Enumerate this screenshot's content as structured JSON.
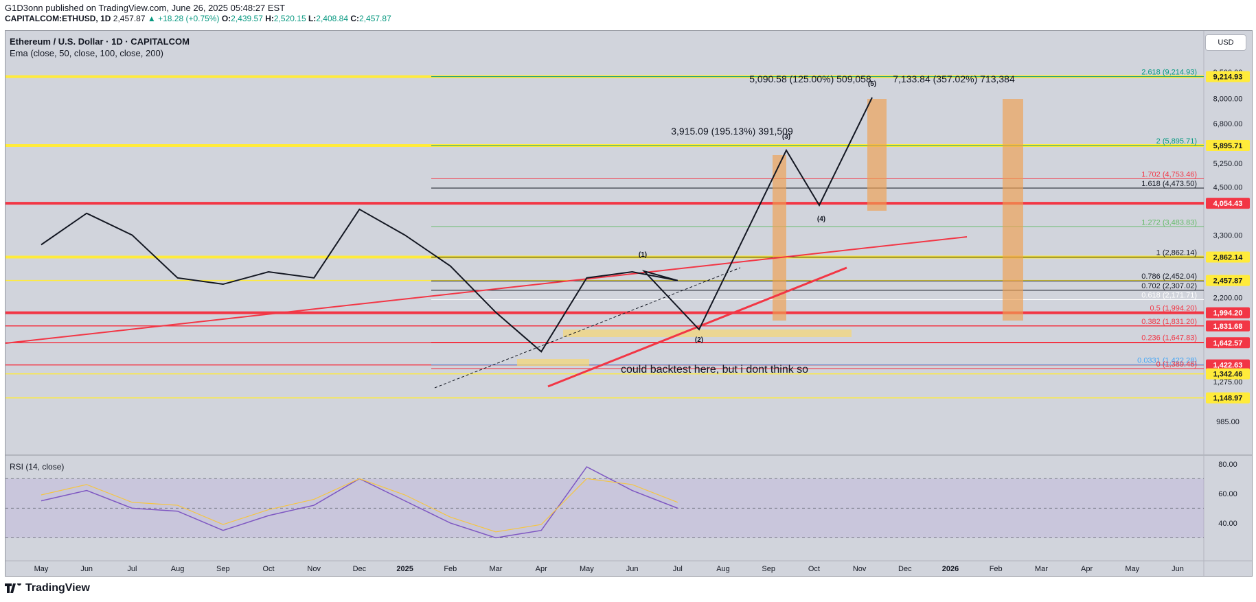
{
  "header": {
    "publisher": "G1D3onn published on TradingView.com, June 26, 2025 05:48:27 EST",
    "symbol": "CAPITALCOM:ETHUSD, 1D",
    "last": "2,457.87",
    "change": "+18.28 (+0.75%)",
    "o_label": "O:",
    "o": "2,439.57",
    "h_label": "H:",
    "h": "2,520.15",
    "l_label": "L:",
    "l": "2,408.84",
    "c_label": "C:",
    "c": "2,457.87"
  },
  "legend": {
    "title": "Ethereum / U.S. Dollar · 1D · CAPITALCOM",
    "ema": "Ema (close, 50, close, 100, close, 200)",
    "rsi": "RSI (14, close)",
    "currency": "USD"
  },
  "footer": {
    "brand": "TradingView"
  },
  "colors": {
    "background": "#d1d4dc",
    "candle_up": "#131722",
    "red_level": "#f23645",
    "yellow_level": "#ffeb3b",
    "orange_box": "#f0a050",
    "rsi_line": "#7e57c2",
    "rsi_ma": "#f5c542"
  },
  "chart_data": [
    {
      "type": "line",
      "title": "Ethereum / U.S. Dollar · 1D · CAPITALCOM",
      "x_axis": [
        "May",
        "Jun",
        "Jul",
        "Aug",
        "Sep",
        "Oct",
        "Nov",
        "Dec",
        "2025",
        "Feb",
        "Mar",
        "Apr",
        "May",
        "Jun",
        "Jul",
        "Aug",
        "Sep",
        "Oct",
        "Nov",
        "Dec",
        "2026",
        "Feb",
        "Mar",
        "Apr",
        "May",
        "Jun"
      ],
      "y_axis_ticks": [
        "9,500.00",
        "8,000.00",
        "6,800.00",
        "5,250.00",
        "4,500.00",
        "3,300.00",
        "2,200.00",
        "1,450.00",
        "1,275.00",
        "985.00"
      ],
      "y_scale": "log",
      "price_tags": [
        {
          "label": "9,214.93",
          "value": 9214.93,
          "color": "yellow"
        },
        {
          "label": "5,895.71",
          "value": 5895.71,
          "color": "yellow"
        },
        {
          "label": "4,054.43",
          "value": 4054.43,
          "color": "red"
        },
        {
          "label": "2,862.14",
          "value": 2862.14,
          "color": "yellow"
        },
        {
          "label": "2,457.87",
          "value": 2457.87,
          "color": "yellow"
        },
        {
          "label": "1,994.20",
          "value": 1994.2,
          "color": "red"
        },
        {
          "label": "1,831.68",
          "value": 1831.68,
          "color": "red"
        },
        {
          "label": "1,642.57",
          "value": 1642.57,
          "color": "red"
        },
        {
          "label": "1,422.63",
          "value": 1422.63,
          "color": "red"
        },
        {
          "label": "1,342.46",
          "value": 1342.46,
          "color": "yellow"
        },
        {
          "label": "1,148.97",
          "value": 1148.97,
          "color": "yellow"
        }
      ],
      "fib_levels": [
        {
          "label": "2.618 (9,214.93)",
          "value": 9214.93
        },
        {
          "label": "2 (5,895.71)",
          "value": 5895.71
        },
        {
          "label": "1.702 (4,753.46)",
          "value": 4753.46
        },
        {
          "label": "1.618 (4,473.50)",
          "value": 4473.5
        },
        {
          "label": "1.272 (3,483.83)",
          "value": 3483.83
        },
        {
          "label": "1 (2,862.14)",
          "value": 2862.14
        },
        {
          "label": "0.786 (2,452.04)",
          "value": 2452.04
        },
        {
          "label": "0.702 (2,307.02)",
          "value": 2307.02
        },
        {
          "label": "0.618 (2,171.71)",
          "value": 2171.71
        },
        {
          "label": "0.5 (1,994.20)",
          "value": 1994.2
        },
        {
          "label": "0.382 (1,831.20)",
          "value": 1831.2
        },
        {
          "label": "0.236 (1,647.83)",
          "value": 1647.83
        },
        {
          "label": "0.0331 (1,422.28)",
          "value": 1422.28
        },
        {
          "label": "0 (1,389.46)",
          "value": 1389.46
        }
      ],
      "projections": [
        {
          "label": "5,090.58 (125.00%) 509,058"
        },
        {
          "label": "7,133.84 (357.02%) 713,384"
        },
        {
          "label": "3,915.09 (195.13%) 391,509"
        }
      ],
      "wave_labels": [
        "(1)",
        "(2)",
        "(3)",
        "(4)",
        "(5)"
      ],
      "annotation": "could backtest here, but i dont think so",
      "approx_price_path": [
        {
          "x": "May 2024",
          "y": 3100
        },
        {
          "x": "Jun 2024",
          "y": 3800
        },
        {
          "x": "Jul 2024",
          "y": 3300
        },
        {
          "x": "Aug 2024",
          "y": 2500
        },
        {
          "x": "Sep 2024",
          "y": 2400
        },
        {
          "x": "Oct 2024",
          "y": 2600
        },
        {
          "x": "Nov 2024",
          "y": 2500
        },
        {
          "x": "Dec 2024",
          "y": 3900
        },
        {
          "x": "Jan 2025",
          "y": 3300
        },
        {
          "x": "Feb 2025",
          "y": 2700
        },
        {
          "x": "Mar 2025",
          "y": 2000
        },
        {
          "x": "Apr 2025",
          "y": 1550
        },
        {
          "x": "May 2025",
          "y": 2500
        },
        {
          "x": "Jun 2025",
          "y": 2600
        },
        {
          "x": "late Jun 2025",
          "y": 2457.87
        }
      ]
    },
    {
      "type": "line",
      "title": "RSI (14, close)",
      "y_axis_ticks": [
        "80.00",
        "60.00",
        "40.00"
      ],
      "ylim": [
        20,
        85
      ],
      "bands": [
        70,
        50,
        30
      ],
      "last_value": 50
    }
  ]
}
